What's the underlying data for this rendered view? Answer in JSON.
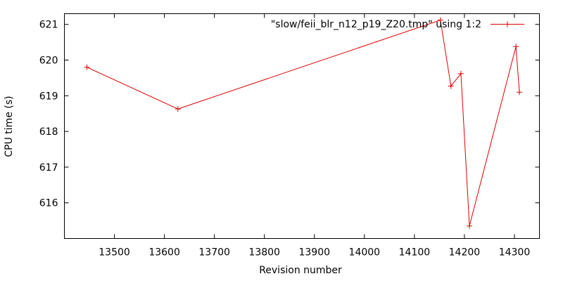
{
  "chart_data": {
    "type": "line",
    "xlabel": "Revision number",
    "ylabel": "CPU time (s)",
    "xlim": [
      13400,
      14350
    ],
    "ylim": [
      615.0,
      621.3
    ],
    "xticks": [
      13500,
      13600,
      13700,
      13800,
      13900,
      14000,
      14100,
      14200,
      14300
    ],
    "yticks": [
      616,
      617,
      618,
      619,
      620,
      621
    ],
    "grid": false,
    "legend_position": "top-right",
    "series": [
      {
        "name": "\"slow/feii_blr_n12_p19_Z20.tmp\" using 1:2",
        "color": "#e00000",
        "marker": "plus",
        "x": [
          13445,
          13627,
          14152,
          14173,
          14193,
          14210,
          14303,
          14310
        ],
        "y": [
          619.8,
          618.63,
          621.12,
          619.27,
          619.62,
          615.35,
          620.38,
          619.1
        ]
      }
    ]
  }
}
